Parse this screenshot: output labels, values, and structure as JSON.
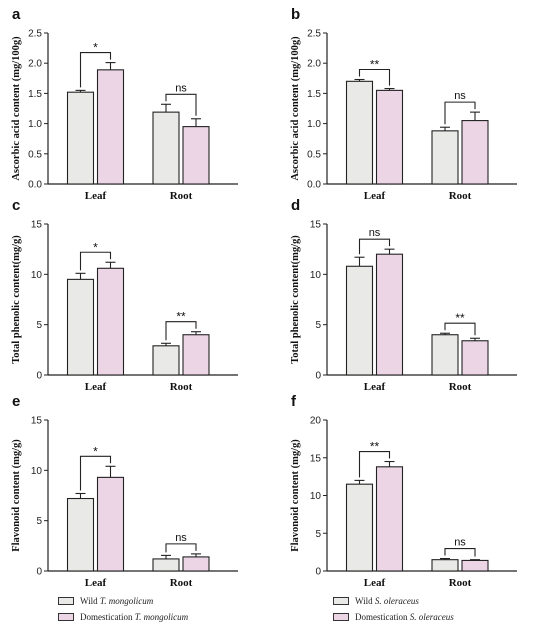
{
  "panel_labels": [
    "a",
    "b",
    "c",
    "d",
    "e",
    "f"
  ],
  "legends": [
    {
      "items": [
        {
          "prefix": "Wild",
          "species": "T. mongolicum",
          "color": "#e9e9e7"
        },
        {
          "prefix": "Domestication",
          "species": "T. mongolicum",
          "color": "#ecd6e6"
        }
      ]
    },
    {
      "items": [
        {
          "prefix": "Wild",
          "species": "S. oleraceus",
          "color": "#e9e9e7"
        },
        {
          "prefix": "Domestication",
          "species": "S. oleraceus",
          "color": "#ecd6e6"
        }
      ]
    }
  ],
  "chart_data": [
    {
      "type": "bar",
      "panel": "a",
      "ylabel": "Ascorbic acid content (mg/100g)",
      "categories": [
        "Leaf",
        "Root"
      ],
      "ylim": [
        0,
        2.5
      ],
      "yticks": [
        "0.0",
        "0.5",
        "1.0",
        "1.5",
        "2.0",
        "2.5"
      ],
      "series": [
        {
          "name": "Wild T. mongolicum",
          "values": [
            1.52,
            1.19
          ],
          "errors": [
            0.03,
            0.13
          ],
          "color": "#e9e9e7"
        },
        {
          "name": "Domestication T. mongolicum",
          "values": [
            1.89,
            0.95
          ],
          "errors": [
            0.12,
            0.13
          ],
          "color": "#ecd6e6"
        }
      ],
      "significance": [
        "*",
        "ns"
      ]
    },
    {
      "type": "bar",
      "panel": "b",
      "ylabel": "Ascorbic acid content (mg/100g)",
      "categories": [
        "Leaf",
        "Root"
      ],
      "ylim": [
        0,
        2.5
      ],
      "yticks": [
        "0.0",
        "0.5",
        "1.0",
        "1.5",
        "2.0",
        "2.5"
      ],
      "series": [
        {
          "name": "Wild S. oleraceus",
          "values": [
            1.7,
            0.88
          ],
          "errors": [
            0.03,
            0.06
          ],
          "color": "#e9e9e7"
        },
        {
          "name": "Domestication S. oleraceus",
          "values": [
            1.55,
            1.05
          ],
          "errors": [
            0.03,
            0.14
          ],
          "color": "#ecd6e6"
        }
      ],
      "significance": [
        "**",
        "ns"
      ]
    },
    {
      "type": "bar",
      "panel": "c",
      "ylabel": "Total phenolic content(mg/g)",
      "categories": [
        "Leaf",
        "Root"
      ],
      "ylim": [
        0,
        15
      ],
      "yticks": [
        "0",
        "5",
        "10",
        "15"
      ],
      "series": [
        {
          "name": "Wild T. mongolicum",
          "values": [
            9.5,
            2.9
          ],
          "errors": [
            0.6,
            0.25
          ],
          "color": "#e9e9e7"
        },
        {
          "name": "Domestication T. mongolicum",
          "values": [
            10.6,
            4.0
          ],
          "errors": [
            0.6,
            0.3
          ],
          "color": "#ecd6e6"
        }
      ],
      "significance": [
        "*",
        "**"
      ]
    },
    {
      "type": "bar",
      "panel": "d",
      "ylabel": "Total phenolic content(mg/g)",
      "categories": [
        "Leaf",
        "Root"
      ],
      "ylim": [
        0,
        15
      ],
      "yticks": [
        "0",
        "5",
        "10",
        "15"
      ],
      "series": [
        {
          "name": "Wild S. oleraceus",
          "values": [
            10.8,
            4.0
          ],
          "errors": [
            0.9,
            0.15
          ],
          "color": "#e9e9e7"
        },
        {
          "name": "Domestication S. oleraceus",
          "values": [
            12.0,
            3.4
          ],
          "errors": [
            0.5,
            0.25
          ],
          "color": "#ecd6e6"
        }
      ],
      "significance": [
        "ns",
        "**"
      ]
    },
    {
      "type": "bar",
      "panel": "e",
      "ylabel": "Flavonoid content  (mg/g)",
      "categories": [
        "Leaf",
        "Root"
      ],
      "ylim": [
        0,
        15
      ],
      "yticks": [
        "0",
        "5",
        "10",
        "15"
      ],
      "series": [
        {
          "name": "Wild T. mongolicum",
          "values": [
            7.2,
            1.2
          ],
          "errors": [
            0.5,
            0.35
          ],
          "color": "#e9e9e7"
        },
        {
          "name": "Domestication T. mongolicum",
          "values": [
            9.3,
            1.4
          ],
          "errors": [
            1.1,
            0.3
          ],
          "color": "#ecd6e6"
        }
      ],
      "significance": [
        "*",
        "ns"
      ]
    },
    {
      "type": "bar",
      "panel": "f",
      "ylabel": "Flavonoid content  (mg/g)",
      "categories": [
        "Leaf",
        "Root"
      ],
      "ylim": [
        0,
        20
      ],
      "yticks": [
        "0",
        "5",
        "10",
        "15",
        "20"
      ],
      "series": [
        {
          "name": "Wild S. oleraceus",
          "values": [
            11.5,
            1.5
          ],
          "errors": [
            0.5,
            0.15
          ],
          "color": "#e9e9e7"
        },
        {
          "name": "Domestication S. oleraceus",
          "values": [
            13.8,
            1.4
          ],
          "errors": [
            0.7,
            0.1
          ],
          "color": "#ecd6e6"
        }
      ],
      "significance": [
        "**",
        "ns"
      ]
    }
  ]
}
